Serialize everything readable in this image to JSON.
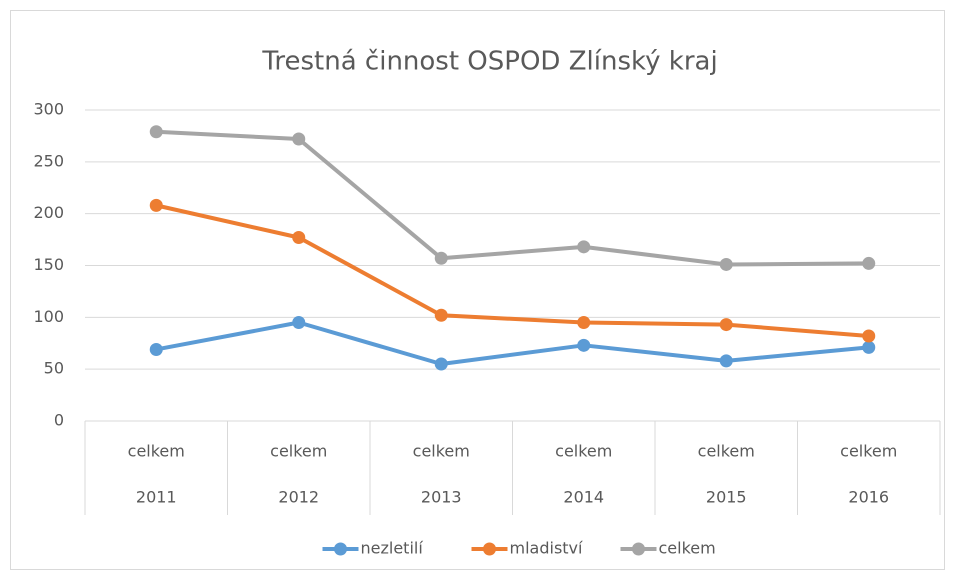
{
  "chart_data": {
    "type": "line",
    "title": "Trestná činnost OSPOD Zlínský kraj",
    "categories": [
      "celkem",
      "celkem",
      "celkem",
      "celkem",
      "celkem",
      "celkem"
    ],
    "category_groups": [
      "2011",
      "2012",
      "2013",
      "2014",
      "2015",
      "2016"
    ],
    "series": [
      {
        "name": "nezletilí",
        "color": "#5b9bd5",
        "values": [
          69,
          95,
          55,
          73,
          58,
          71
        ]
      },
      {
        "name": "mladiství",
        "color": "#ed7d31",
        "values": [
          208,
          177,
          102,
          95,
          93,
          82
        ]
      },
      {
        "name": "celkem",
        "color": "#a5a5a5",
        "values": [
          279,
          272,
          157,
          168,
          151,
          152
        ]
      }
    ],
    "ylim": [
      0,
      300
    ],
    "yticks": [
      0,
      50,
      100,
      150,
      200,
      250,
      300
    ],
    "grid": true,
    "legend": "bottom"
  }
}
